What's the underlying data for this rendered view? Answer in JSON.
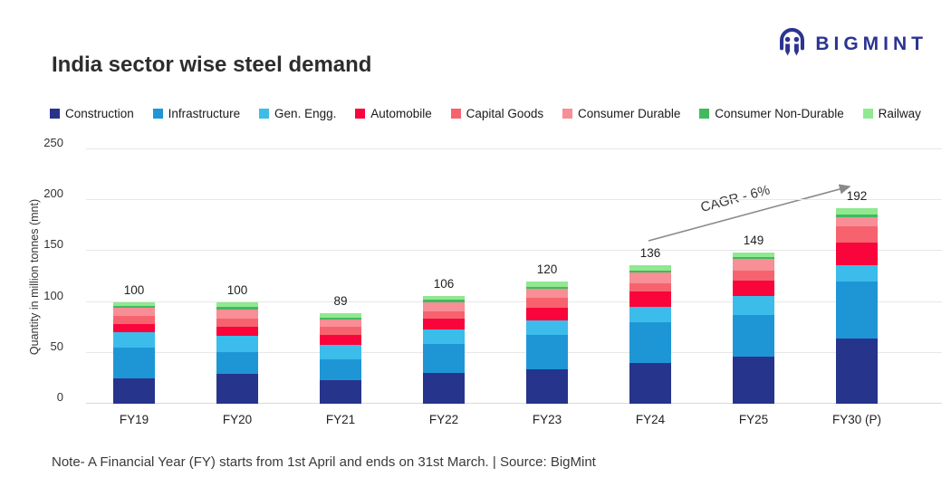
{
  "header": {
    "title": "India sector wise steel demand",
    "logo_text": "BIGMINT"
  },
  "chart_data": {
    "type": "bar",
    "stacked": true,
    "title": "India sector wise steel demand",
    "ylabel": "Quantity in million tonnes (mnt)",
    "xlabel": "",
    "ylim": [
      0,
      250
    ],
    "yticks": [
      0,
      50,
      100,
      150,
      200,
      250
    ],
    "grid": "horizontal",
    "legend_position": "top",
    "categories": [
      "FY19",
      "FY20",
      "FY21",
      "FY22",
      "FY23",
      "FY24",
      "FY25",
      "FY30 (P)"
    ],
    "series": [
      {
        "name": "Construction",
        "color": "#27348b",
        "values": [
          25,
          29,
          23,
          30,
          34,
          40,
          46,
          64
        ]
      },
      {
        "name": "Infrastructure",
        "color": "#1e96d6",
        "values": [
          30,
          22,
          21,
          29,
          34,
          40,
          41,
          56
        ]
      },
      {
        "name": "Gen. Engg.",
        "color": "#3cbcea",
        "values": [
          15,
          16,
          14,
          14,
          14,
          15,
          19,
          16
        ]
      },
      {
        "name": "Automobile",
        "color": "#f9053c",
        "values": [
          8,
          9,
          10,
          11,
          12,
          15,
          15,
          22
        ]
      },
      {
        "name": "Capital Goods",
        "color": "#f6636e",
        "values": [
          8,
          8,
          8,
          7,
          10,
          8,
          10,
          16
        ]
      },
      {
        "name": "Consumer Durable",
        "color": "#f88e96",
        "values": [
          8,
          9,
          7,
          9,
          9,
          11,
          11,
          9
        ]
      },
      {
        "name": "Consumer Non-Durable",
        "color": "#41ba5e",
        "values": [
          2,
          2,
          2,
          2,
          2,
          2,
          2,
          3
        ]
      },
      {
        "name": "Railway",
        "color": "#90e890",
        "values": [
          4,
          5,
          4,
          4,
          5,
          5,
          5,
          6
        ]
      }
    ],
    "totals": [
      100,
      100,
      89,
      106,
      120,
      136,
      149,
      192
    ],
    "annotation": "CAGR - 6%"
  },
  "footer": {
    "note": "Note- A Financial Year (FY) starts from 1st April and ends on 31st March. | Source: BigMint"
  },
  "colors": {
    "brand_navy": "#2b3590",
    "grid": "#e7e7e7",
    "arrow_gray": "#8a8a8a"
  }
}
